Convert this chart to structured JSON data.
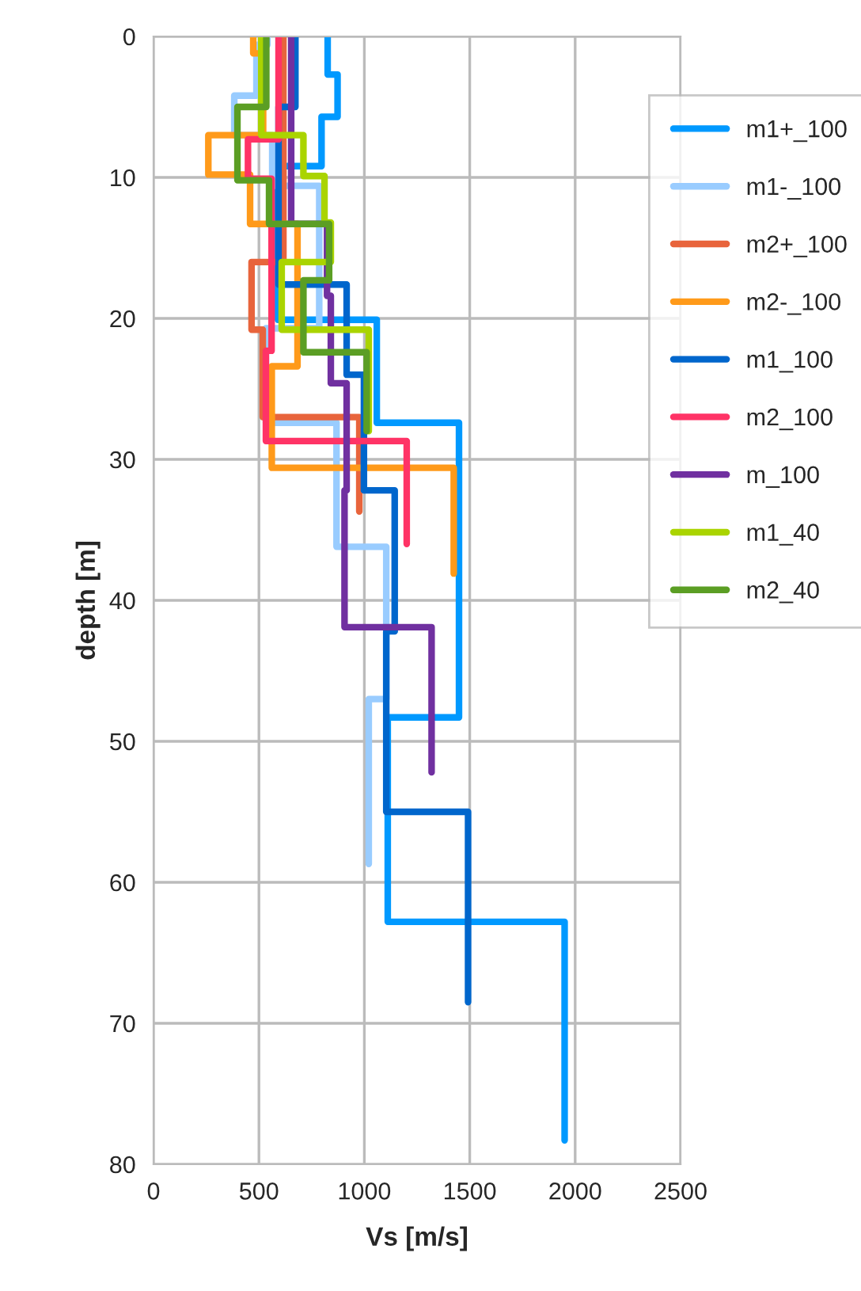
{
  "chart_data": {
    "type": "line",
    "xlabel": "Vs [m/s]",
    "ylabel": "depth [m]",
    "xlim": [
      0,
      2500
    ],
    "xticks": [
      0,
      500,
      1000,
      1500,
      2000,
      2500
    ],
    "ylim": [
      80,
      0
    ],
    "yticks": [
      0,
      10,
      20,
      30,
      40,
      50,
      60,
      70,
      80
    ],
    "grid": true,
    "legend": "right",
    "marker": "none",
    "line_style": "solid",
    "series": [
      {
        "name": "m1+_100",
        "color": "#0099ff",
        "x": [
          826,
          826,
          873,
          873,
          797,
          797,
          590,
          590,
          1059,
          1059,
          1449,
          1449,
          1111,
          1111,
          1950,
          1950
        ],
        "values": [
          0,
          2.7,
          2.7,
          5.7,
          5.7,
          9.2,
          9.2,
          20.1,
          20.1,
          27.4,
          27.4,
          48.3,
          48.3,
          62.8,
          62.8,
          78.3
        ]
      },
      {
        "name": "m1-_100",
        "color": "#99ccff",
        "x": [
          540,
          540,
          488,
          488,
          383,
          383,
          563,
          563,
          786,
          786,
          533,
          533,
          868,
          868,
          1104,
          1104,
          1021,
          1021
        ],
        "values": [
          0,
          0.6,
          0.6,
          4.2,
          4.2,
          7,
          7,
          10.6,
          10.6,
          20.7,
          20.7,
          27.4,
          27.4,
          36.2,
          36.2,
          47,
          47,
          58.7
        ]
      },
      {
        "name": "m2+_100",
        "color": "#e8643c",
        "x": [
          616,
          616,
          465,
          465,
          518,
          518,
          976,
          976
        ],
        "values": [
          0,
          16,
          16,
          20.8,
          20.8,
          27,
          27,
          33.7
        ]
      },
      {
        "name": "m2-_100",
        "color": "#ff9a1a",
        "x": [
          473,
          473,
          520,
          520,
          260,
          260,
          458,
          458,
          683,
          683,
          561,
          561,
          1424,
          1424
        ],
        "values": [
          0,
          1.2,
          1.2,
          7,
          7,
          9.8,
          9.8,
          13.3,
          13.3,
          23.4,
          23.4,
          30.6,
          30.6,
          38.1
        ]
      },
      {
        "name": "m1_100",
        "color": "#0066cc",
        "x": [
          673,
          673,
          593,
          593,
          916,
          916,
          998,
          998,
          1144,
          1144,
          1104,
          1104,
          1492,
          1492
        ],
        "values": [
          0,
          5,
          5,
          17.6,
          17.6,
          24,
          24,
          32.2,
          32.2,
          42.2,
          42.2,
          55,
          55,
          68.5
        ]
      },
      {
        "name": "m2_100",
        "color": "#ff3366",
        "x": [
          593,
          593,
          448,
          448,
          560,
          560,
          533,
          533,
          1201,
          1201
        ],
        "values": [
          0,
          7.3,
          7.3,
          10.1,
          10.1,
          22.3,
          22.3,
          28.7,
          28.7,
          36
        ]
      },
      {
        "name": "m_100",
        "color": "#7030a0",
        "x": [
          653,
          653,
          823,
          823,
          841,
          841,
          916,
          916,
          906,
          906,
          1319,
          1319
        ],
        "values": [
          0,
          13.3,
          13.3,
          18.4,
          18.4,
          24.6,
          24.6,
          32.2,
          32.2,
          41.9,
          41.9,
          52.2
        ]
      },
      {
        "name": "m1_40",
        "color": "#aad400",
        "x": [
          511,
          511,
          711,
          711,
          811,
          811,
          841,
          841,
          608,
          608,
          1021,
          1021
        ],
        "values": [
          0,
          7,
          7,
          9.9,
          9.9,
          13.2,
          13.2,
          16,
          16,
          20.8,
          20.8,
          28
        ]
      },
      {
        "name": "m2_40",
        "color": "#5b9e24",
        "x": [
          535,
          535,
          398,
          398,
          548,
          548,
          833,
          833,
          711,
          711,
          1011,
          1011
        ],
        "values": [
          0,
          5,
          5,
          10.2,
          10.2,
          13.3,
          13.3,
          17.3,
          17.3,
          22.4,
          22.4,
          28
        ]
      }
    ]
  }
}
